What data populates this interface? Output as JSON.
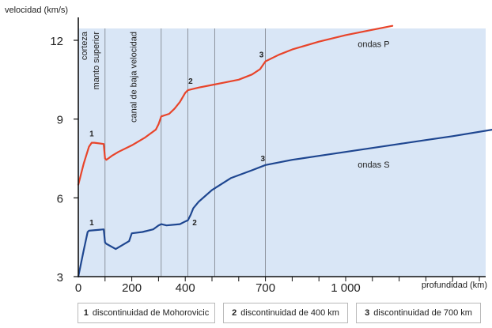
{
  "chart_data": {
    "type": "line",
    "ylabel": "velocidad (km/s)",
    "xlabel": "profundidad (km)",
    "ylim": [
      3,
      12.5
    ],
    "xlim": [
      0,
      1550
    ],
    "grid": "vertical lines at discontinuities",
    "xticks": [
      {
        "value": 0,
        "label": "0"
      },
      {
        "value": 200,
        "label": "200"
      },
      {
        "value": 400,
        "label": "400"
      },
      {
        "value": 700,
        "label": "700"
      },
      {
        "value": 1000,
        "label": "1 000"
      }
    ],
    "yticks": [
      {
        "value": 3,
        "label": "3"
      },
      {
        "value": 6,
        "label": "6"
      },
      {
        "value": 9,
        "label": "9"
      },
      {
        "value": 12,
        "label": "12"
      }
    ],
    "vertical_lines": [
      100,
      310,
      410,
      510,
      700
    ],
    "shaded_region": {
      "x_from": 0,
      "x_to": 1550,
      "color": "#d9e6f6"
    },
    "layers": [
      {
        "label": "corteza",
        "x": 20
      },
      {
        "label": "manto superior",
        "x": 65
      },
      {
        "label": "canal de baja velocidad",
        "x": 205
      }
    ],
    "series": [
      {
        "name": "ondas P",
        "color": "#e8442a",
        "x": [
          0,
          20,
          40,
          50,
          60,
          95,
          100,
          105,
          125,
          150,
          200,
          250,
          290,
          300,
          310,
          340,
          360,
          380,
          400,
          410,
          450,
          500,
          550,
          600,
          650,
          680,
          700,
          750,
          800,
          900,
          1000,
          1100,
          1175
        ],
        "y": [
          6.5,
          7.3,
          7.95,
          8.1,
          8.1,
          8.05,
          7.5,
          7.45,
          7.6,
          7.75,
          8.0,
          8.3,
          8.6,
          8.8,
          9.1,
          9.2,
          9.4,
          9.65,
          10.0,
          10.1,
          10.2,
          10.3,
          10.4,
          10.5,
          10.7,
          10.9,
          11.2,
          11.45,
          11.65,
          11.95,
          12.2,
          12.4,
          12.55
        ]
      },
      {
        "name": "ondas S",
        "color": "#1e4690",
        "x": [
          0,
          20,
          35,
          40,
          95,
          100,
          105,
          140,
          190,
          200,
          240,
          280,
          300,
          310,
          330,
          380,
          400,
          410,
          420,
          430,
          450,
          500,
          570,
          650,
          700,
          800,
          900,
          1000,
          1100,
          1200,
          1300,
          1400,
          1550
        ],
        "y": [
          3.0,
          4.0,
          4.7,
          4.75,
          4.8,
          4.3,
          4.25,
          4.05,
          4.35,
          4.65,
          4.7,
          4.8,
          4.95,
          5.0,
          4.95,
          5.0,
          5.1,
          5.15,
          5.35,
          5.6,
          5.85,
          6.3,
          6.75,
          7.05,
          7.25,
          7.45,
          7.6,
          7.75,
          7.9,
          8.05,
          8.2,
          8.35,
          8.6
        ]
      }
    ],
    "annotations": [
      {
        "text": "1",
        "x": 50,
        "y": 8.35,
        "series": "ondas P"
      },
      {
        "text": "2",
        "x": 420,
        "y": 10.35,
        "series": "ondas P"
      },
      {
        "text": "3",
        "x": 685,
        "y": 11.35,
        "series": "ondas P"
      },
      {
        "text": "1",
        "x": 50,
        "y": 4.95,
        "series": "ondas S"
      },
      {
        "text": "2",
        "x": 435,
        "y": 4.95,
        "series": "ondas S"
      },
      {
        "text": "3",
        "x": 690,
        "y": 7.4,
        "series": "ondas S"
      }
    ],
    "series_labels": [
      {
        "text": "ondas P",
        "x": 1045,
        "y": 11.75
      },
      {
        "text": "ondas S",
        "x": 1045,
        "y": 7.15
      }
    ]
  },
  "legend": [
    {
      "number": "1",
      "text": "discontinuidad de Mohorovicic"
    },
    {
      "number": "2",
      "text": "discontinuidad de 400 km"
    },
    {
      "number": "3",
      "text": "discontinuidad de 700 km"
    }
  ]
}
